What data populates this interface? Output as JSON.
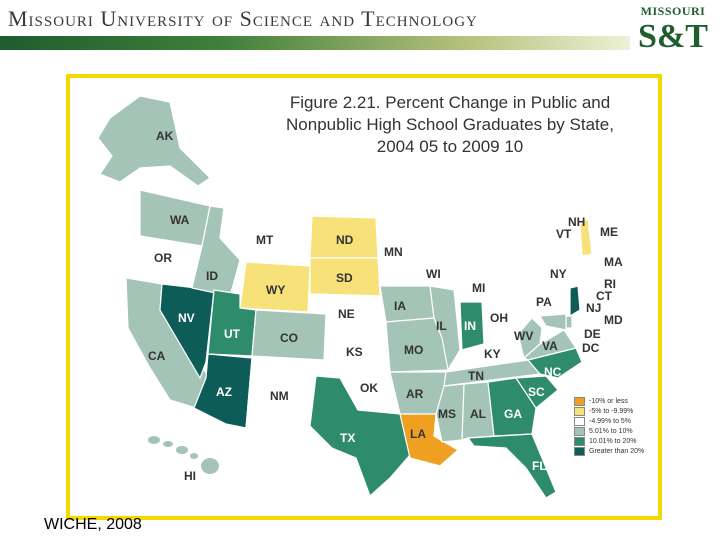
{
  "header": {
    "university": "Missouri University of Science and Technology",
    "logo_top": "MISSOURI",
    "logo_main": "S&T"
  },
  "figure": {
    "title_lines": [
      "Figure 2.21.  Percent Change in Public and",
      "Nonpublic High School Graduates by State,",
      "2004 05 to 2009 10"
    ]
  },
  "legend": [
    {
      "label": "-10% or less",
      "color": "#f0a020"
    },
    {
      "label": "-5% to -9.99%",
      "color": "#f7e27a"
    },
    {
      "label": "-4.99% to 5%",
      "color": "#ffffff"
    },
    {
      "label": "5.01% to 10%",
      "color": "#a3c4b6"
    },
    {
      "label": "10.01% to 20%",
      "color": "#2e8c6c"
    },
    {
      "label": "Greater than 20%",
      "color": "#0d5c57"
    }
  ],
  "states": {
    "AK": "AK",
    "WA": "WA",
    "OR": "OR",
    "CA": "CA",
    "NV": "NV",
    "ID": "ID",
    "MT": "MT",
    "WY": "WY",
    "UT": "UT",
    "AZ": "AZ",
    "CO": "CO",
    "NM": "NM",
    "ND": "ND",
    "SD": "SD",
    "NE": "NE",
    "KS": "KS",
    "OK": "OK",
    "TX": "TX",
    "MN": "MN",
    "IA": "IA",
    "MO": "MO",
    "AR": "AR",
    "LA": "LA",
    "WI": "WI",
    "IL": "IL",
    "MI": "MI",
    "IN": "IN",
    "OH": "OH",
    "KY": "KY",
    "TN": "TN",
    "MS": "MS",
    "AL": "AL",
    "GA": "GA",
    "FL": "FL",
    "SC": "SC",
    "NC": "NC",
    "VA": "VA",
    "WV": "WV",
    "PA": "PA",
    "NY": "NY",
    "VT": "VT",
    "NH": "NH",
    "ME": "ME",
    "MA": "MA",
    "RI": "RI",
    "CT": "CT",
    "NJ": "NJ",
    "DE": "DE",
    "MD": "MD",
    "DC": "DC",
    "HI": "HI"
  },
  "source": "WICHE, 2008"
}
